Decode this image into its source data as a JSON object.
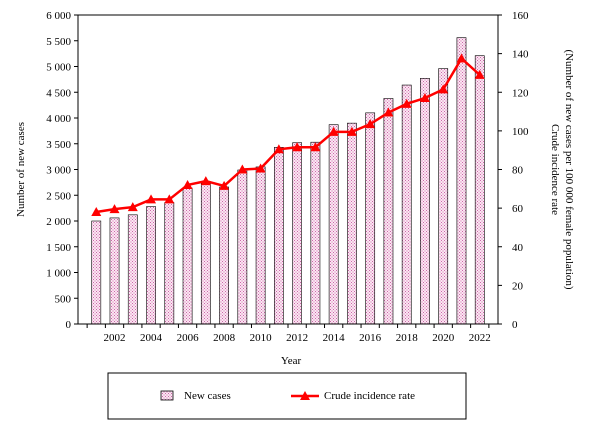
{
  "chart_data": {
    "type": "bar",
    "xlabel": "Year",
    "ylabel_left": "Number of new cases",
    "ylabel_right_line1": "Crude incidence rate",
    "ylabel_right_line2": "(Number of new cases per 100 000 female population)",
    "x": [
      2001,
      2002,
      2003,
      2004,
      2005,
      2006,
      2007,
      2008,
      2009,
      2010,
      2011,
      2012,
      2013,
      2014,
      2015,
      2016,
      2017,
      2018,
      2019,
      2020,
      2021,
      2022
    ],
    "x_tick_labels": [
      "2002",
      "2004",
      "2006",
      "2008",
      "2010",
      "2012",
      "2014",
      "2016",
      "2018",
      "2020",
      "2022"
    ],
    "ylim_left": [
      0,
      6000
    ],
    "yticks_left": [
      "0",
      "500",
      "1 000",
      "1 500",
      "2 000",
      "2 500",
      "3 000",
      "3 500",
      "4 000",
      "4 500",
      "5 000",
      "5 500",
      "6 000"
    ],
    "ylim_right": [
      0,
      160
    ],
    "yticks_right": [
      "0",
      "20",
      "40",
      "60",
      "80",
      "100",
      "120",
      "140",
      "160"
    ],
    "series": [
      {
        "name": "New cases",
        "type": "bar",
        "axis": "left",
        "color": "#cc66aa",
        "fill_pattern": "dotted-pink",
        "values": [
          2000,
          2060,
          2120,
          2280,
          2360,
          2640,
          2730,
          2660,
          2990,
          3050,
          3430,
          3520,
          3530,
          3870,
          3900,
          4100,
          4380,
          4640,
          4770,
          4960,
          5560,
          5210
        ]
      },
      {
        "name": "Crude incidence rate",
        "type": "line",
        "axis": "right",
        "color": "#ff0000",
        "marker": "triangle",
        "values": [
          58,
          59.5,
          60.5,
          64.5,
          64.5,
          72,
          74,
          71.5,
          80,
          80.5,
          90.5,
          91.5,
          91.5,
          99.5,
          99.5,
          103.5,
          109.5,
          114,
          117,
          121.5,
          137.5,
          129
        ]
      }
    ],
    "grid": false,
    "legend_position": "bottom"
  }
}
